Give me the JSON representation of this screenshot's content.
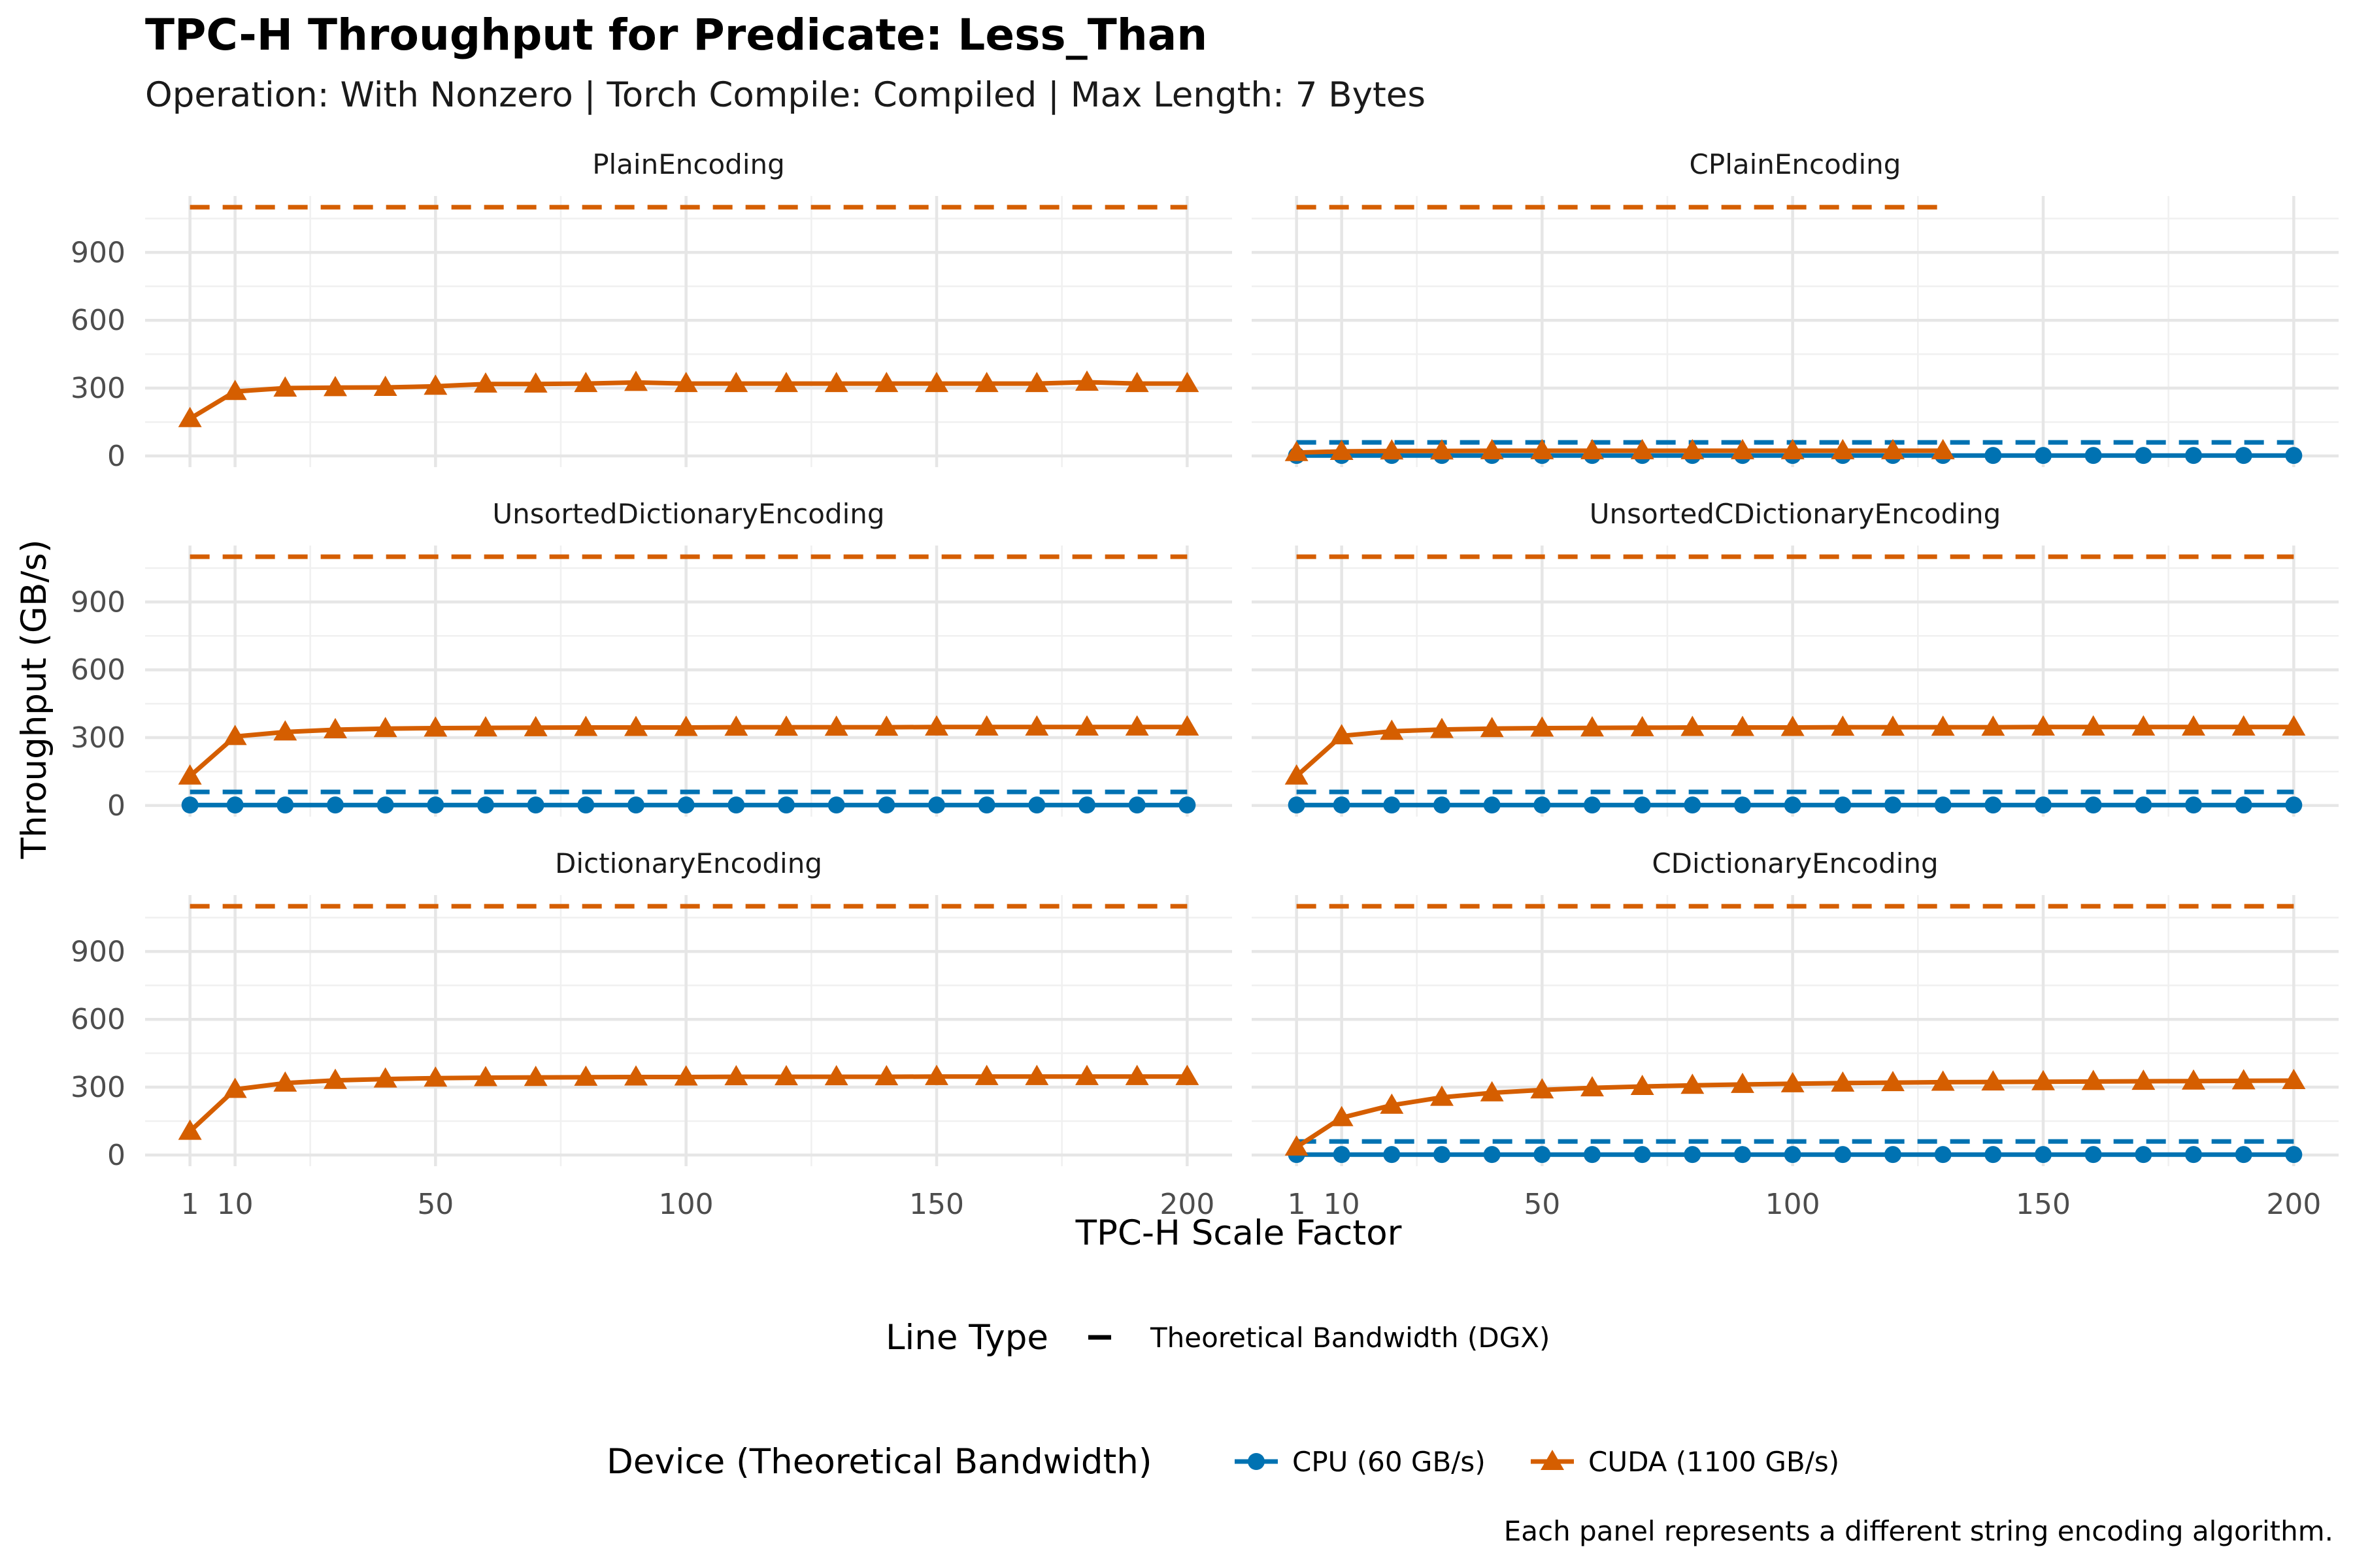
{
  "chart_data": {
    "type": "line",
    "title": "TPC-H Throughput for Predicate: Less_Than",
    "subtitle": "Operation: With Nonzero | Torch Compile: Compiled | Max Length: 7 Bytes",
    "xlabel": "TPC-H Scale Factor",
    "ylabel": "Throughput (GB/s)",
    "caption": "Each panel represents a different string encoding algorithm.",
    "xlim": [
      1,
      200
    ],
    "ylim": [
      0,
      1100
    ],
    "x_ticks": [
      1,
      10,
      50,
      100,
      150,
      200
    ],
    "y_ticks": [
      0,
      300,
      600,
      900
    ],
    "grid": true,
    "legend_placement": "bottom",
    "linetype_legend": {
      "title": "Line Type",
      "label": "Theoretical Bandwidth (DGX)"
    },
    "device_legend": {
      "title": "Device (Theoretical Bandwidth)",
      "entries": [
        {
          "key": "cpu",
          "label": "CPU (60 GB/s)",
          "color": "#0072B2",
          "marker": "circle"
        },
        {
          "key": "cuda",
          "label": "CUDA (1100 GB/s)",
          "color": "#D55E00",
          "marker": "triangle"
        }
      ]
    },
    "x": [
      1,
      10,
      20,
      30,
      40,
      50,
      60,
      70,
      80,
      90,
      100,
      110,
      120,
      130,
      140,
      150,
      160,
      170,
      180,
      190,
      200
    ],
    "panels": [
      {
        "name": "PlainEncoding",
        "theoretical": [
          {
            "device": "cuda",
            "value": 1100,
            "xmax": 200
          }
        ],
        "series": [
          {
            "device": "cuda",
            "values": [
              165,
              285,
              300,
              302,
              303,
              308,
              318,
              318,
              320,
              325,
              320,
              320,
              320,
              320,
              320,
              320,
              320,
              320,
              326,
              320,
              320
            ]
          }
        ]
      },
      {
        "name": "CPlainEncoding",
        "theoretical": [
          {
            "device": "cuda",
            "value": 1100,
            "xmax": 130
          },
          {
            "device": "cpu",
            "value": 60,
            "xmax": 200
          }
        ],
        "series": [
          {
            "device": "cuda",
            "x": [
              1,
              10,
              20,
              30,
              40,
              50,
              60,
              70,
              80,
              90,
              100,
              110,
              120,
              130
            ],
            "values": [
              15,
              20,
              22,
              22,
              23,
              23,
              23,
              23,
              23,
              23,
              23,
              23,
              23,
              23
            ]
          },
          {
            "device": "cpu",
            "values": [
              2,
              2,
              2,
              2,
              2,
              2,
              2,
              2,
              2,
              2,
              2,
              2,
              2,
              2,
              2,
              2,
              2,
              2,
              2,
              2,
              2
            ]
          }
        ]
      },
      {
        "name": "UnsortedDictionaryEncoding",
        "theoretical": [
          {
            "device": "cuda",
            "value": 1100,
            "xmax": 200
          },
          {
            "device": "cpu",
            "value": 60,
            "xmax": 200
          }
        ],
        "series": [
          {
            "device": "cuda",
            "values": [
              130,
              305,
              325,
              335,
              340,
              342,
              343,
              344,
              345,
              345,
              345,
              346,
              346,
              346,
              346,
              347,
              347,
              347,
              347,
              347,
              347
            ]
          },
          {
            "device": "cpu",
            "values": [
              2,
              2,
              2,
              2,
              2,
              2,
              2,
              2,
              2,
              2,
              2,
              2,
              2,
              2,
              2,
              2,
              2,
              2,
              2,
              2,
              2
            ]
          }
        ]
      },
      {
        "name": "UnsortedCDictionaryEncoding",
        "theoretical": [
          {
            "device": "cuda",
            "value": 1100,
            "xmax": 200
          },
          {
            "device": "cpu",
            "value": 60,
            "xmax": 200
          }
        ],
        "series": [
          {
            "device": "cuda",
            "values": [
              130,
              308,
              328,
              336,
              340,
              342,
              343,
              344,
              345,
              345,
              345,
              346,
              346,
              346,
              346,
              347,
              347,
              347,
              347,
              347,
              347
            ]
          },
          {
            "device": "cpu",
            "values": [
              2,
              2,
              2,
              2,
              2,
              2,
              2,
              2,
              2,
              2,
              2,
              2,
              2,
              2,
              2,
              2,
              2,
              2,
              2,
              2,
              2
            ]
          }
        ]
      },
      {
        "name": "DictionaryEncoding",
        "theoretical": [
          {
            "device": "cuda",
            "value": 1100,
            "xmax": 200
          }
        ],
        "series": [
          {
            "device": "cuda",
            "values": [
              105,
              290,
              318,
              330,
              336,
              340,
              342,
              343,
              344,
              345,
              345,
              346,
              346,
              346,
              346,
              347,
              347,
              347,
              347,
              347,
              347
            ]
          }
        ]
      },
      {
        "name": "CDictionaryEncoding",
        "theoretical": [
          {
            "device": "cuda",
            "value": 1100,
            "xmax": 200
          },
          {
            "device": "cpu",
            "value": 60,
            "xmax": 200
          }
        ],
        "series": [
          {
            "device": "cuda",
            "values": [
              35,
              165,
              220,
              255,
              275,
              288,
              297,
              303,
              308,
              312,
              315,
              318,
              320,
              322,
              323,
              324,
              325,
              326,
              327,
              328,
              329
            ]
          },
          {
            "device": "cpu",
            "values": [
              2,
              2,
              2,
              2,
              2,
              2,
              2,
              2,
              2,
              2,
              2,
              2,
              2,
              2,
              2,
              2,
              2,
              2,
              2,
              2,
              2
            ]
          }
        ]
      }
    ]
  }
}
